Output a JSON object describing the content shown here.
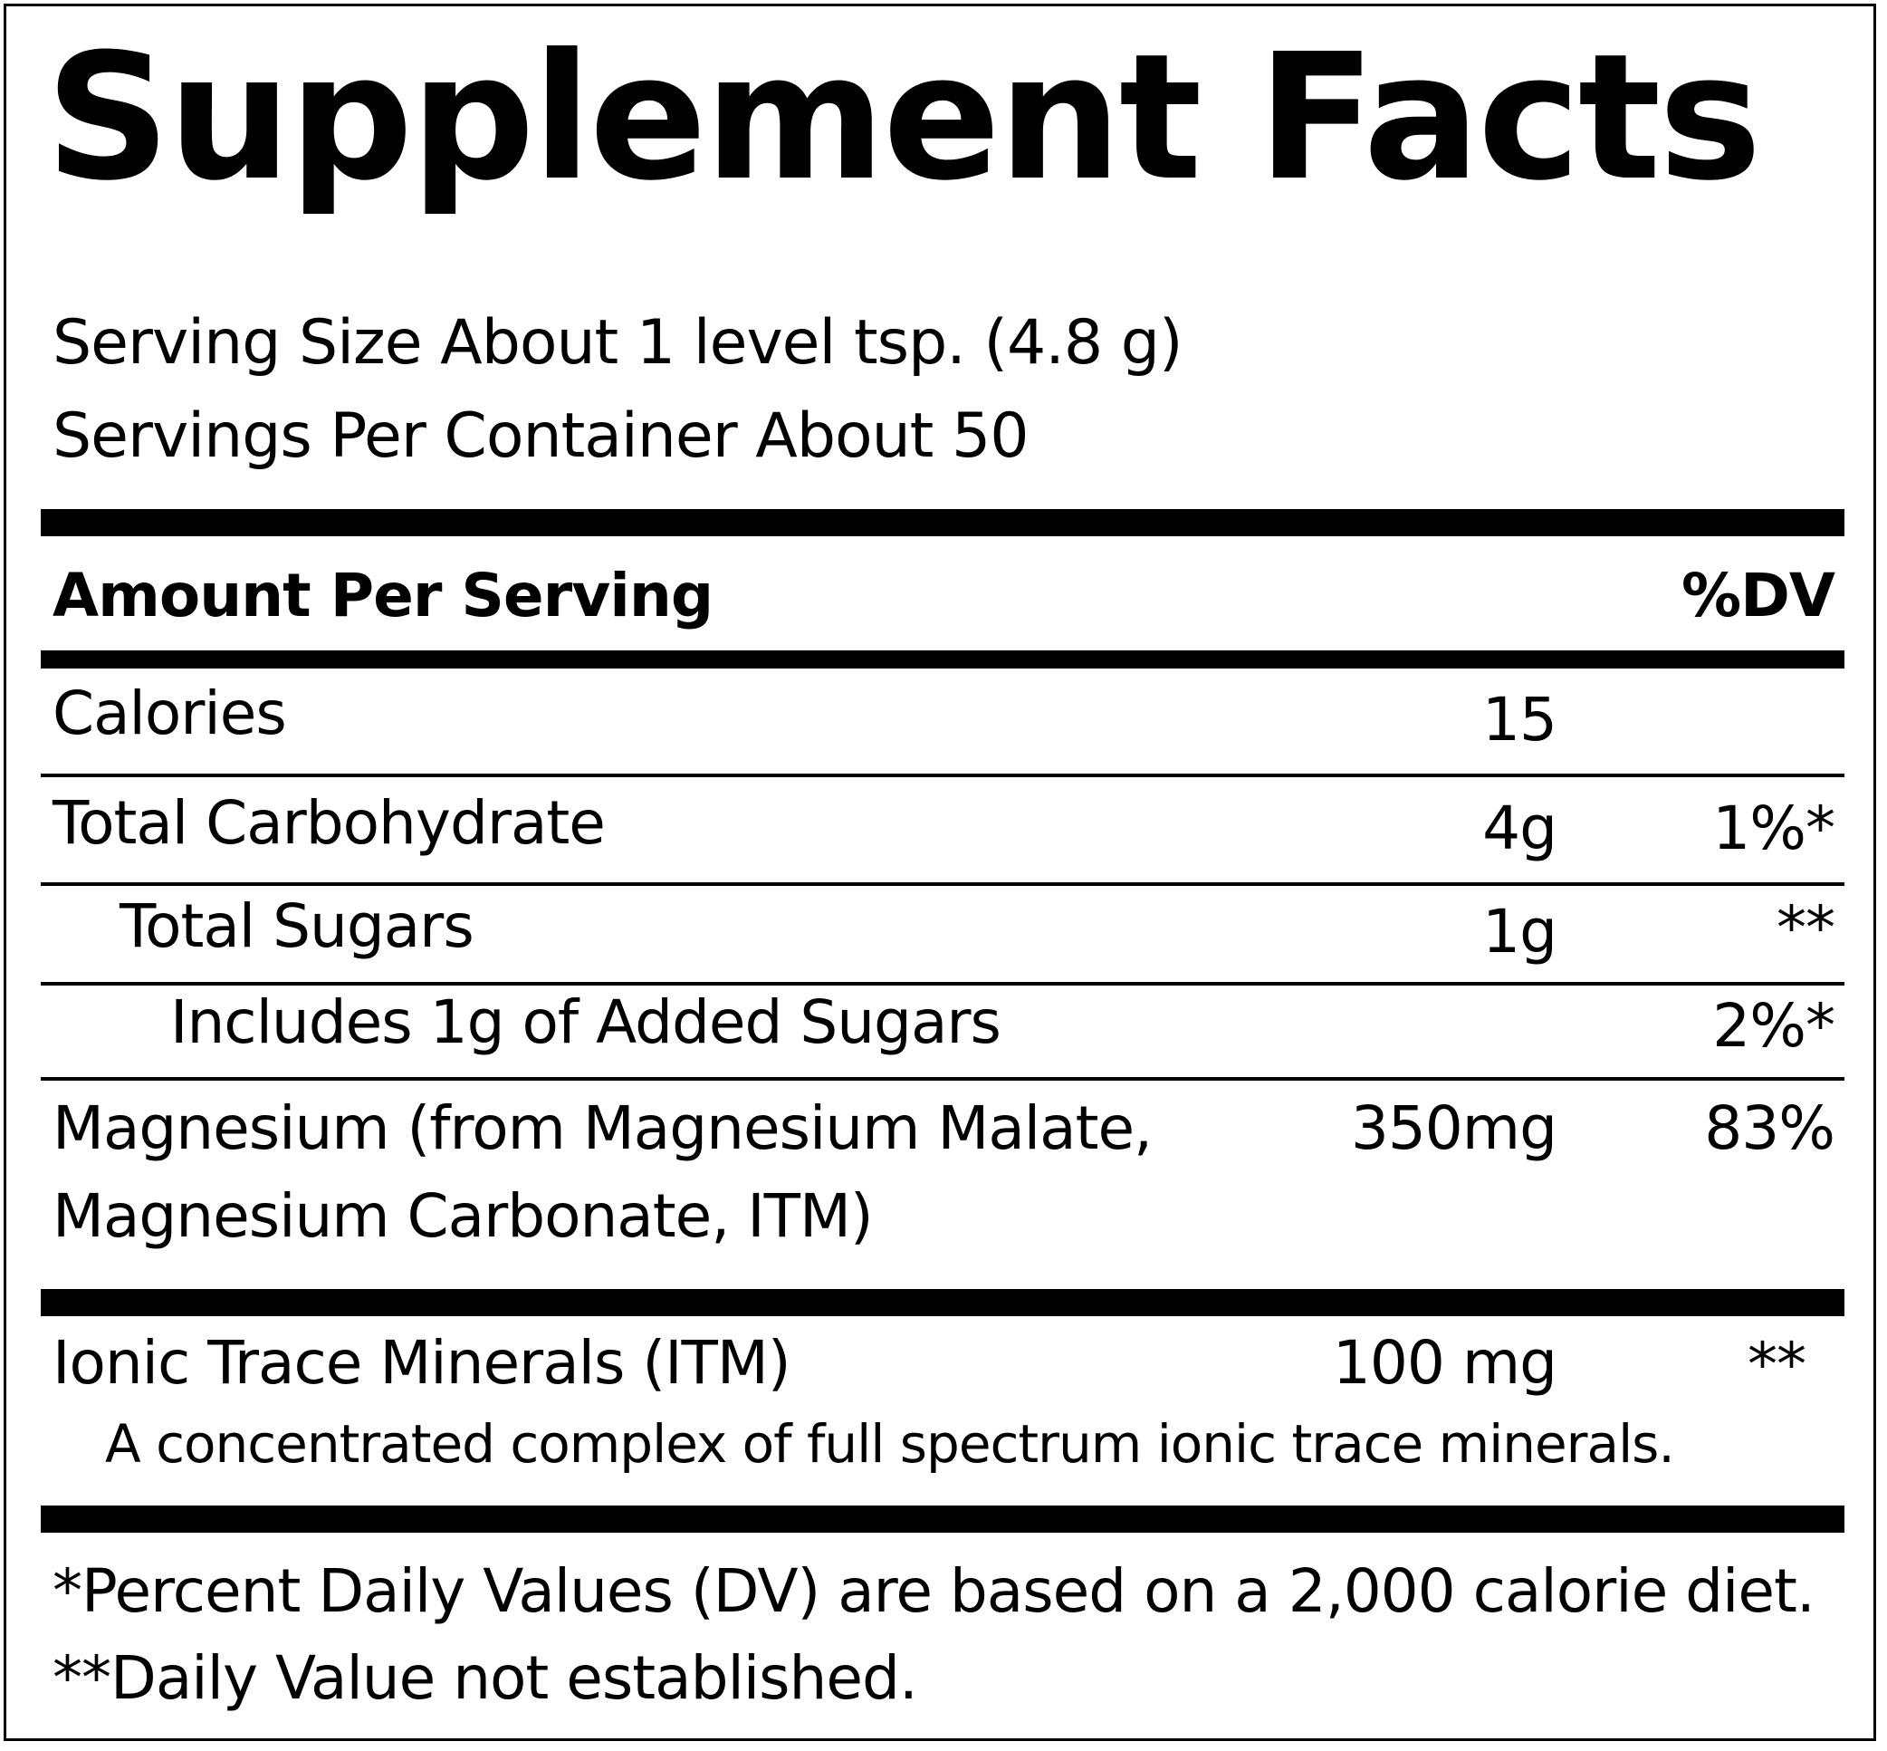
{
  "title": "Supplement Facts",
  "serving_size": "Serving Size About 1 level tsp. (4.8 g)",
  "servings_per_container": "Servings Per Container About 50",
  "header": {
    "amount_label": "Amount Per Serving",
    "dv_label": "%DV"
  },
  "rows": [
    {
      "name": "Calories",
      "amount": "15",
      "dv": ""
    },
    {
      "name": "Total Carbohydrate",
      "amount": "4g",
      "dv": "1%*"
    },
    {
      "name": "Total Sugars",
      "amount": "1g",
      "dv": "**"
    },
    {
      "name": "Includes 1g of Added Sugars",
      "amount": "",
      "dv": "2%*"
    },
    {
      "name_line1": "Magnesium (from  Magnesium Malate,",
      "name_line2": "Magnesium Carbonate, ITM)",
      "amount": "350mg",
      "dv": "83%"
    },
    {
      "name": "Ionic Trace Minerals (ITM)",
      "amount": "100 mg",
      "dv": "**",
      "note": "A concentrated complex of full spectrum ionic trace minerals."
    }
  ],
  "footnotes": [
    "*Percent Daily Values (DV) are based on a 2,000 calorie diet.",
    "**Daily Value not established."
  ]
}
